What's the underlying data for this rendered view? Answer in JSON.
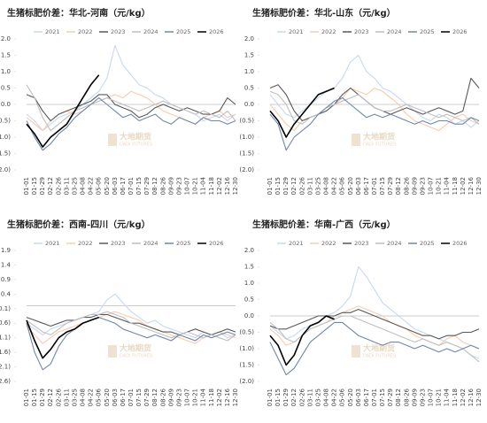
{
  "watermark": {
    "cn": "大地期货",
    "en": "DADI FUTURES"
  },
  "chart_data": [
    {
      "type": "line",
      "title": "生猪标肥价差：华北-河南（元/kg）",
      "categories": [
        "01-01",
        "01-15",
        "01-29",
        "02-12",
        "02-26",
        "03-11",
        "03-25",
        "04-08",
        "04-22",
        "05-06",
        "05-20",
        "06-03",
        "06-17",
        "07-01",
        "07-15",
        "07-29",
        "08-12",
        "08-26",
        "09-09",
        "09-23",
        "10-07",
        "10-21",
        "11-04",
        "11-18",
        "12-02",
        "12-16",
        "12-30"
      ],
      "ylim": [
        -2,
        2
      ],
      "yticks": [
        {
          "value": 2,
          "label": "2.0"
        },
        1.5,
        {
          "value": 1,
          "label": "1.0"
        },
        0.5,
        {
          "value": 0,
          "label": "0.0"
        },
        {
          "value": -0.5,
          "label": "(0.5)"
        },
        {
          "value": -1,
          "label": "(1.0)"
        },
        {
          "value": -1.5,
          "label": "(1.5)"
        },
        {
          "value": -2,
          "label": "(2.0)"
        }
      ],
      "series": [
        {
          "name": "2021",
          "color": "#c5d9ee",
          "values": [
            -0.3,
            -0.5,
            -0.8,
            -0.6,
            -0.4,
            -0.3,
            -0.2,
            0.0,
            0.2,
            0.4,
            0.8,
            1.8,
            1.2,
            0.9,
            0.6,
            0.5,
            0.3,
            0.2,
            0.0,
            -0.1,
            -0.2,
            -0.3,
            -0.5,
            -0.4,
            -0.3,
            -0.5,
            -0.3
          ]
        },
        {
          "name": "2022",
          "color": "#f8cbad",
          "values": [
            -0.4,
            -0.6,
            -0.8,
            -0.5,
            -0.3,
            -0.2,
            -0.3,
            -0.2,
            0.0,
            0.1,
            0.2,
            0.3,
            0.2,
            0.4,
            0.3,
            0.2,
            0.0,
            -0.2,
            -0.3,
            -0.4,
            -0.5,
            -0.6,
            -0.4,
            -0.3,
            -0.2,
            -0.4,
            -0.3
          ]
        },
        {
          "name": "2023",
          "color": "#595959",
          "values": [
            0.3,
            0.2,
            -0.2,
            -0.5,
            -0.3,
            -0.2,
            -0.1,
            0.0,
            0.1,
            0.3,
            0.3,
            0.0,
            -0.1,
            -0.2,
            -0.4,
            -0.3,
            -0.1,
            0.0,
            -0.1,
            -0.2,
            -0.1,
            -0.2,
            -0.3,
            -0.3,
            -0.2,
            0.2,
            0.0
          ]
        },
        {
          "name": "2024",
          "color": "#bfbfbf",
          "values": [
            0.6,
            0.2,
            -0.4,
            -0.8,
            -0.6,
            -0.4,
            -0.2,
            -0.1,
            0.0,
            0.1,
            0.2,
            0.1,
            0.0,
            -0.1,
            -0.2,
            -0.1,
            0.0,
            0.1,
            0.0,
            -0.1,
            -0.2,
            -0.3,
            -0.2,
            -0.3,
            -0.4,
            -0.2,
            -0.5
          ]
        },
        {
          "name": "2025",
          "color": "#6f87ad",
          "values": [
            -0.5,
            -1.0,
            -1.4,
            -1.2,
            -0.9,
            -0.7,
            -0.4,
            -0.2,
            0.0,
            0.2,
            0.0,
            -0.2,
            -0.4,
            -0.3,
            -0.5,
            -0.4,
            -0.3,
            -0.5,
            -0.6,
            -0.4,
            -0.5,
            -0.6,
            -0.4,
            -0.5,
            -0.5,
            -0.6,
            -0.5
          ]
        },
        {
          "name": "2026",
          "color": "#000000",
          "values": [
            -0.6,
            -0.9,
            -1.3,
            -1.0,
            -0.8,
            -0.6,
            -0.2,
            0.2,
            0.6,
            0.9,
            null,
            null,
            null,
            null,
            null,
            null,
            null,
            null,
            null,
            null,
            null,
            null,
            null,
            null,
            null,
            null,
            null
          ]
        }
      ]
    },
    {
      "type": "line",
      "title": "生猪标肥价差：华北-山东（元/kg）",
      "categories": [
        "01-01",
        "01-15",
        "01-29",
        "02-12",
        "02-26",
        "03-11",
        "03-25",
        "04-08",
        "04-22",
        "05-06",
        "05-20",
        "06-03",
        "06-17",
        "07-01",
        "07-15",
        "07-29",
        "08-12",
        "08-26",
        "09-09",
        "09-23",
        "10-07",
        "10-21",
        "11-04",
        "11-18",
        "12-02",
        "12-16",
        "12-30"
      ],
      "ylim": [
        -2,
        2
      ],
      "yticks": [
        {
          "value": 2,
          "label": "2.0"
        },
        1.5,
        {
          "value": 1,
          "label": "1.0"
        },
        0.5,
        {
          "value": 0,
          "label": "0.0"
        },
        {
          "value": -0.5,
          "label": "(0.5)"
        },
        {
          "value": -1,
          "label": "(1.0)"
        },
        {
          "value": -1.5,
          "label": "(1.5)"
        },
        {
          "value": -2,
          "label": "(2.0)"
        }
      ],
      "series": [
        {
          "name": "2021",
          "color": "#c5d9ee",
          "values": [
            0.3,
            0.0,
            -0.3,
            -0.4,
            -0.2,
            0.0,
            0.2,
            0.4,
            0.5,
            0.8,
            1.3,
            1.5,
            1.0,
            0.8,
            0.5,
            0.4,
            0.2,
            0.0,
            -0.2,
            -0.4,
            -0.5,
            -0.3,
            -0.4,
            -0.6,
            -0.5,
            -0.7,
            -0.5
          ]
        },
        {
          "name": "2022",
          "color": "#f8cbad",
          "values": [
            0.0,
            -0.3,
            -0.6,
            -0.8,
            -0.5,
            -0.4,
            -0.3,
            -0.2,
            0.0,
            0.2,
            0.5,
            0.4,
            0.3,
            0.5,
            0.4,
            0.2,
            0.0,
            -0.3,
            -0.5,
            -0.6,
            -0.7,
            -0.8,
            -0.6,
            -0.4,
            -0.3,
            -0.5,
            -0.6
          ]
        },
        {
          "name": "2023",
          "color": "#595959",
          "values": [
            0.5,
            0.6,
            0.3,
            -0.2,
            -0.5,
            -0.4,
            -0.3,
            -0.2,
            0.0,
            0.3,
            0.5,
            0.3,
            0.1,
            -0.1,
            -0.2,
            -0.3,
            -0.2,
            -0.1,
            -0.2,
            -0.3,
            -0.2,
            -0.1,
            -0.2,
            -0.3,
            -0.2,
            0.8,
            0.5
          ]
        },
        {
          "name": "2024",
          "color": "#bfbfbf",
          "values": [
            0.4,
            0.3,
            0.0,
            -0.5,
            -0.6,
            -0.4,
            -0.3,
            -0.1,
            0.0,
            0.1,
            0.2,
            0.3,
            0.1,
            -0.1,
            -0.2,
            -0.2,
            -0.1,
            0.0,
            -0.1,
            -0.2,
            -0.3,
            -0.4,
            -0.3,
            -0.4,
            -0.5,
            -0.4,
            -0.6
          ]
        },
        {
          "name": "2025",
          "color": "#6f87ad",
          "values": [
            -0.3,
            -0.6,
            -1.4,
            -1.0,
            -0.8,
            -0.6,
            -0.3,
            -0.1,
            0.1,
            0.2,
            0.0,
            -0.2,
            -0.4,
            -0.3,
            -0.4,
            -0.3,
            -0.4,
            -0.5,
            -0.6,
            -0.5,
            -0.6,
            -0.5,
            -0.5,
            -0.6,
            -0.6,
            -0.4,
            -0.5
          ]
        },
        {
          "name": "2026",
          "color": "#000000",
          "values": [
            -0.2,
            -0.5,
            -1.0,
            -0.6,
            -0.3,
            0.0,
            0.3,
            0.4,
            0.5,
            null,
            null,
            null,
            null,
            null,
            null,
            null,
            null,
            null,
            null,
            null,
            null,
            null,
            null,
            null,
            null,
            null,
            null
          ]
        }
      ]
    },
    {
      "type": "line",
      "title": "生猪标肥价差：西南-四川（元/kg）",
      "categories": [
        "01-01",
        "01-15",
        "01-29",
        "02-12",
        "02-26",
        "03-11",
        "03-25",
        "04-08",
        "04-22",
        "05-06",
        "05-20",
        "06-03",
        "06-17",
        "07-01",
        "07-15",
        "07-29",
        "08-12",
        "08-26",
        "09-09",
        "09-23",
        "10-07",
        "10-21",
        "11-04",
        "11-18",
        "12-02",
        "12-16",
        "12-30"
      ],
      "ylim": [
        -2.6,
        1.9
      ],
      "yticks": [
        1.9,
        1.4,
        0.9,
        0.4,
        {
          "value": -0.1,
          "label": "(0.1)"
        },
        {
          "value": -0.6,
          "label": "(0.6)"
        },
        {
          "value": -1.1,
          "label": "(1.1)"
        },
        {
          "value": -1.6,
          "label": "(1.6)"
        },
        {
          "value": -2.1,
          "label": "(2.1)"
        },
        {
          "value": -2.6,
          "label": "(2.6)"
        }
      ],
      "series": [
        {
          "name": "2021",
          "color": "#c5d9ee",
          "values": [
            -0.6,
            -0.8,
            -1.0,
            -0.8,
            -0.7,
            -0.6,
            -0.5,
            -0.4,
            -0.3,
            -0.2,
            0.2,
            0.4,
            0.1,
            -0.2,
            -0.4,
            -0.6,
            -0.5,
            -0.7,
            -0.8,
            -0.9,
            -1.0,
            -1.1,
            -0.9,
            -1.0,
            -0.9,
            -1.1,
            -1.0
          ]
        },
        {
          "name": "2022",
          "color": "#f8cbad",
          "values": [
            -0.7,
            -1.0,
            -1.3,
            -1.1,
            -0.9,
            -0.8,
            -0.7,
            -0.6,
            -0.5,
            -0.4,
            -0.3,
            -0.2,
            -0.3,
            -0.4,
            -0.5,
            -0.7,
            -0.8,
            -0.9,
            -1.0,
            -1.1,
            -1.2,
            -1.3,
            -1.1,
            -1.0,
            -0.9,
            -1.0,
            -1.1
          ]
        },
        {
          "name": "2023",
          "color": "#595959",
          "values": [
            -0.4,
            -0.5,
            -0.6,
            -0.7,
            -0.6,
            -0.5,
            -0.5,
            -0.4,
            -0.4,
            -0.3,
            -0.3,
            -0.4,
            -0.5,
            -0.6,
            -0.6,
            -0.7,
            -0.8,
            -0.9,
            -0.9,
            -1.0,
            -0.9,
            -0.8,
            -0.9,
            -1.0,
            -0.9,
            -0.8,
            -0.9
          ]
        },
        {
          "name": "2024",
          "color": "#bfbfbf",
          "values": [
            -0.5,
            -0.7,
            -0.9,
            -1.0,
            -0.8,
            -0.6,
            -0.5,
            -0.4,
            -0.3,
            -0.3,
            -0.2,
            -0.3,
            -0.4,
            -0.6,
            -0.7,
            -0.8,
            -0.9,
            -1.0,
            -1.1,
            -1.0,
            -0.9,
            -1.0,
            -1.1,
            -1.0,
            -1.1,
            -1.2,
            -1.0
          ]
        },
        {
          "name": "2025",
          "color": "#6f87ad",
          "values": [
            -0.6,
            -1.6,
            -2.2,
            -2.0,
            -1.4,
            -1.0,
            -0.8,
            -0.6,
            -0.5,
            -0.4,
            -0.5,
            -0.6,
            -0.8,
            -0.9,
            -1.0,
            -1.1,
            -1.0,
            -1.1,
            -1.2,
            -1.0,
            -1.1,
            -1.2,
            -1.0,
            -1.1,
            -1.0,
            -0.9,
            -1.0
          ]
        },
        {
          "name": "2026",
          "color": "#000000",
          "values": [
            -0.5,
            -1.2,
            -1.8,
            -1.5,
            -1.1,
            -0.9,
            -0.8,
            -0.6,
            -0.5,
            -0.4,
            null,
            null,
            null,
            null,
            null,
            null,
            null,
            null,
            null,
            null,
            null,
            null,
            null,
            null,
            null,
            null,
            null
          ]
        }
      ]
    },
    {
      "type": "line",
      "title": "生猪标肥价差：华南-广西（元/kg）",
      "categories": [
        "01-01",
        "01-15",
        "01-29",
        "02-12",
        "02-26",
        "03-11",
        "03-25",
        "04-08",
        "04-22",
        "05-06",
        "05-20",
        "06-03",
        "06-17",
        "07-01",
        "07-15",
        "07-29",
        "08-12",
        "08-26",
        "09-09",
        "09-23",
        "10-07",
        "10-21",
        "11-04",
        "11-18",
        "12-02",
        "12-16",
        "12-30"
      ],
      "ylim": [
        -2,
        2
      ],
      "yticks": [
        {
          "value": 2,
          "label": "2.0"
        },
        1.5,
        {
          "value": 1,
          "label": "1.0"
        },
        0.5,
        {
          "value": 0,
          "label": "0.0"
        },
        {
          "value": -0.5,
          "label": "(0.5)"
        },
        {
          "value": -1,
          "label": "(1.0)"
        },
        {
          "value": -1.5,
          "label": "(1.5)"
        },
        {
          "value": -2,
          "label": "(2.0)"
        }
      ],
      "series": [
        {
          "name": "2021",
          "color": "#c5d9ee",
          "values": [
            -0.3,
            -0.5,
            -0.7,
            -0.6,
            -0.4,
            -0.3,
            -0.2,
            0.0,
            0.1,
            0.3,
            0.6,
            1.5,
            1.2,
            0.8,
            0.4,
            0.2,
            0.0,
            -0.2,
            -0.4,
            -0.5,
            -0.6,
            -0.7,
            -0.8,
            -0.9,
            -1.0,
            -1.2,
            -1.3
          ]
        },
        {
          "name": "2022",
          "color": "#f8cbad",
          "values": [
            -0.4,
            -0.6,
            -0.9,
            -0.8,
            -0.6,
            -0.4,
            -0.3,
            -0.2,
            0.0,
            0.1,
            0.2,
            0.3,
            0.2,
            0.1,
            0.0,
            -0.2,
            -0.3,
            -0.4,
            -0.6,
            -0.7,
            -0.8,
            -0.9,
            -0.7,
            -0.6,
            -0.8,
            -0.9,
            -1.0
          ]
        },
        {
          "name": "2023",
          "color": "#595959",
          "values": [
            -0.3,
            -0.4,
            -0.4,
            -0.3,
            -0.2,
            -0.1,
            0.0,
            0.0,
            0.0,
            0.1,
            0.1,
            0.2,
            0.1,
            0.0,
            -0.1,
            -0.2,
            -0.3,
            -0.4,
            -0.5,
            -0.6,
            -0.6,
            -0.7,
            -0.6,
            -0.6,
            -0.5,
            -0.5,
            -0.4
          ]
        },
        {
          "name": "2024",
          "color": "#bfbfbf",
          "values": [
            -0.2,
            -0.4,
            -0.7,
            -0.8,
            -0.6,
            -0.4,
            -0.3,
            -0.2,
            -0.1,
            0.0,
            0.0,
            -0.1,
            -0.2,
            -0.3,
            -0.4,
            -0.5,
            -0.6,
            -0.7,
            -0.8,
            -0.7,
            -0.8,
            -0.9,
            -0.8,
            -0.9,
            -1.0,
            -1.2,
            -1.4
          ]
        },
        {
          "name": "2025",
          "color": "#6f87ad",
          "values": [
            -0.8,
            -1.3,
            -1.8,
            -1.6,
            -1.2,
            -0.8,
            -0.6,
            -0.4,
            -0.2,
            -0.2,
            -0.4,
            -0.6,
            -0.7,
            -0.8,
            -0.9,
            -0.8,
            -0.8,
            -0.9,
            -1.0,
            -0.9,
            -1.0,
            -1.1,
            -1.0,
            -1.1,
            -1.0,
            -0.9,
            -1.0
          ]
        },
        {
          "name": "2026",
          "color": "#000000",
          "values": [
            -0.6,
            -0.9,
            -1.5,
            -1.2,
            -0.6,
            -0.3,
            -0.2,
            0.0,
            -0.1,
            null,
            null,
            null,
            null,
            null,
            null,
            null,
            null,
            null,
            null,
            null,
            null,
            null,
            null,
            null,
            null,
            null,
            null
          ]
        }
      ]
    }
  ]
}
